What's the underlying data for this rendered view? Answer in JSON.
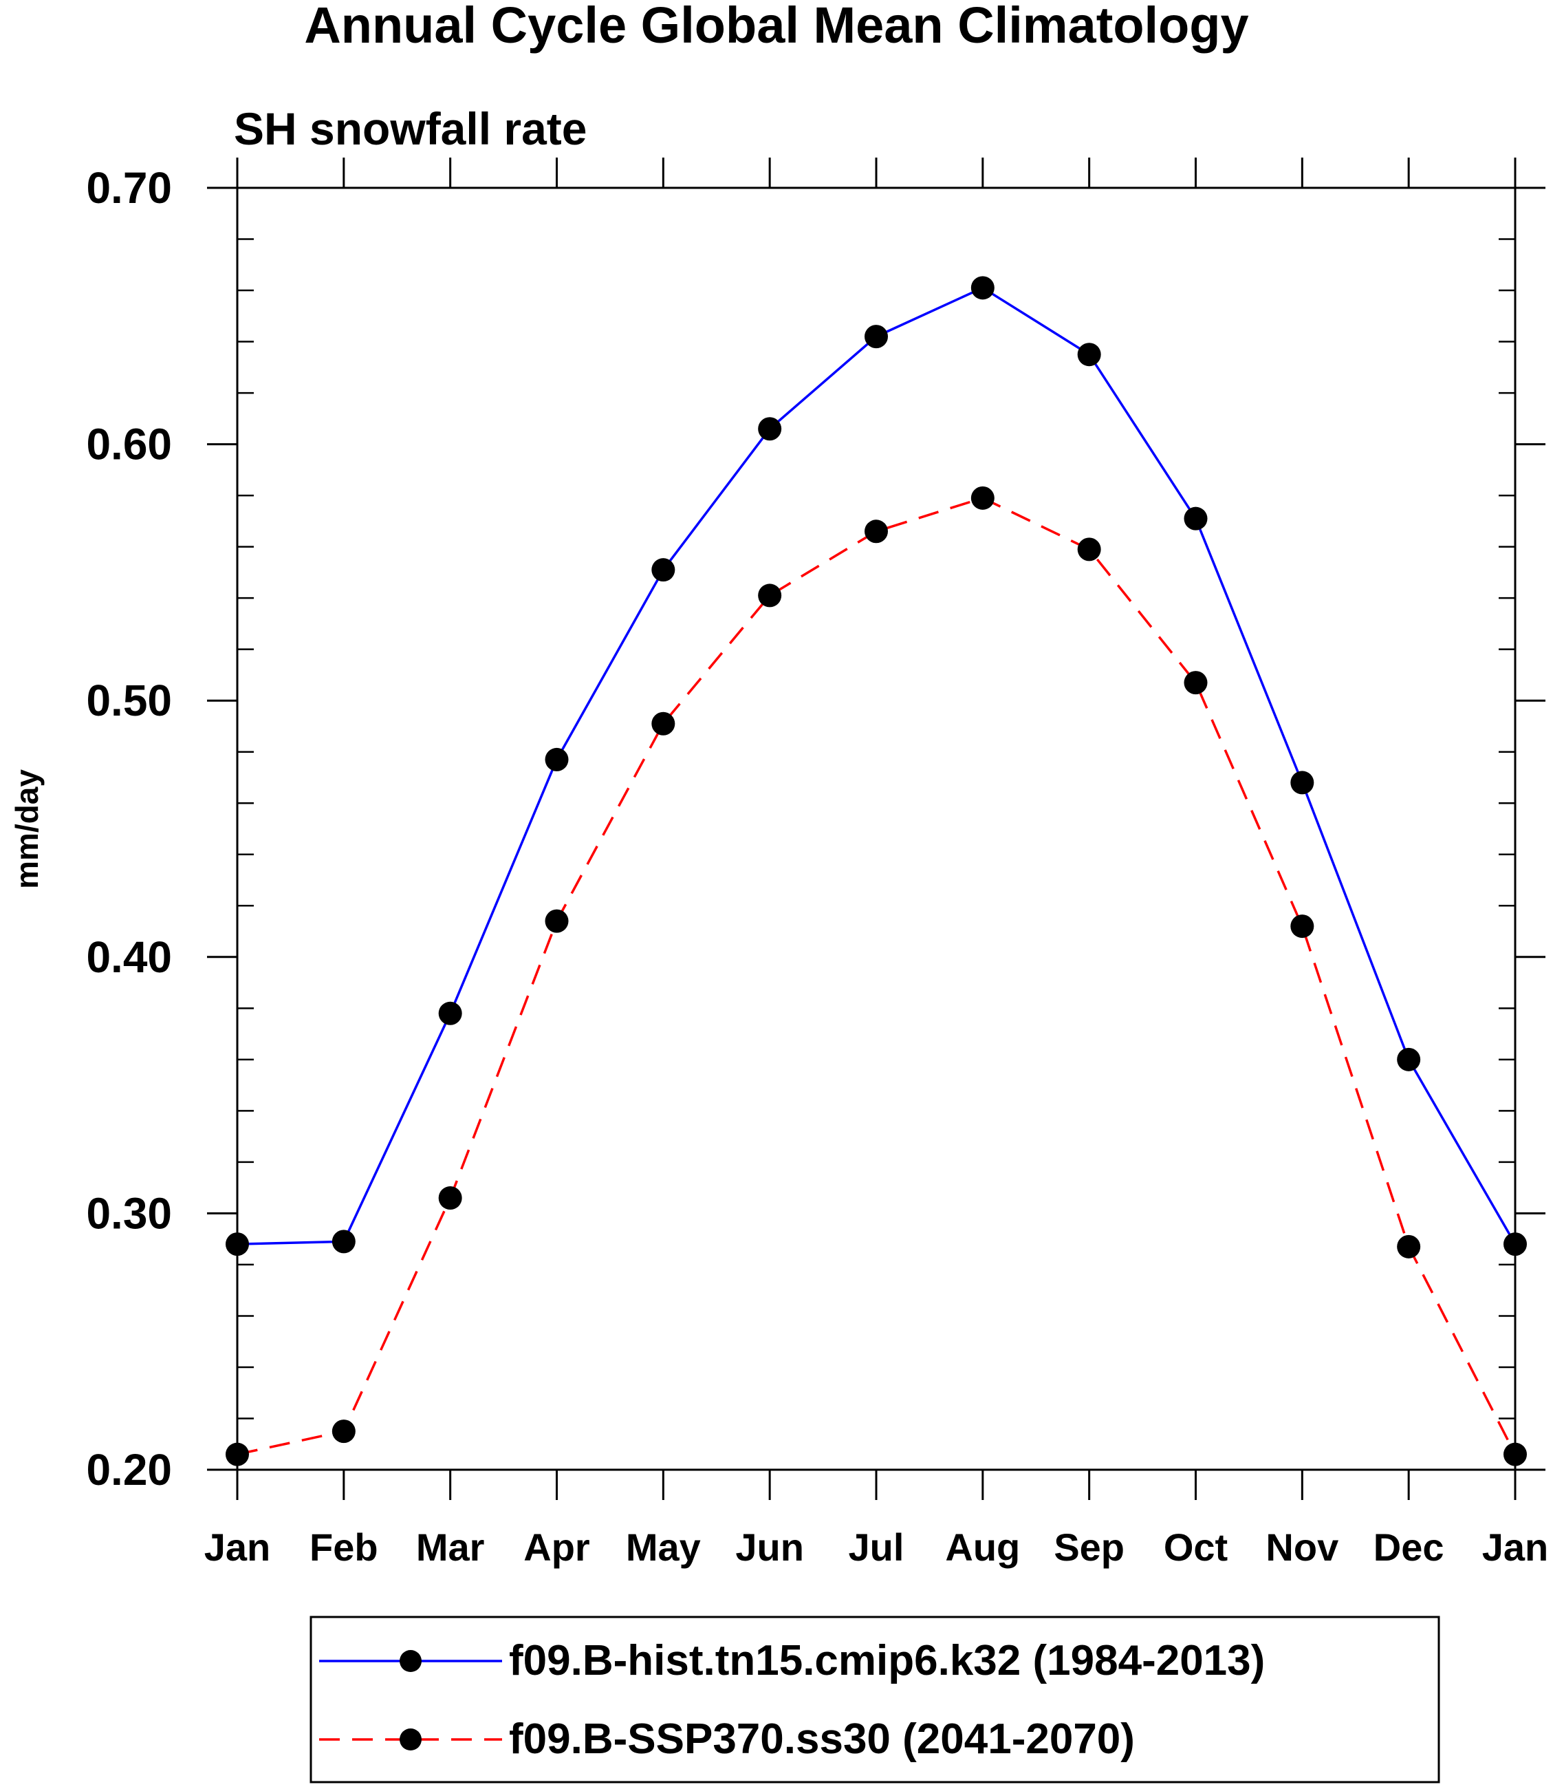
{
  "chart_data": {
    "type": "line",
    "title": "Annual Cycle Global Mean Climatology",
    "subtitle": "SH snowfall rate",
    "xlabel": "",
    "ylabel": "mm/day",
    "categories": [
      "Jan",
      "Feb",
      "Mar",
      "Apr",
      "May",
      "Jun",
      "Jul",
      "Aug",
      "Sep",
      "Oct",
      "Nov",
      "Dec",
      "Jan"
    ],
    "ylim": [
      0.2,
      0.7
    ],
    "yticks": [
      "0.20",
      "0.30",
      "0.40",
      "0.50",
      "0.60",
      "0.70"
    ],
    "grid": false,
    "legend_position": "bottom",
    "series": [
      {
        "name": "f09.B-hist.tn15.cmip6.k32 (1984-2013)",
        "color": "#0000ff",
        "dash": "solid",
        "marker": "filled-circle",
        "values": [
          0.288,
          0.289,
          0.378,
          0.477,
          0.551,
          0.606,
          0.642,
          0.661,
          0.635,
          0.571,
          0.468,
          0.36,
          0.288
        ]
      },
      {
        "name": "f09.B-SSP370.ss30 (2041-2070)",
        "color": "#ff0000",
        "dash": "dashed",
        "marker": "filled-circle",
        "values": [
          0.206,
          0.215,
          0.306,
          0.414,
          0.491,
          0.541,
          0.566,
          0.579,
          0.559,
          0.507,
          0.412,
          0.287,
          0.206
        ]
      }
    ]
  }
}
